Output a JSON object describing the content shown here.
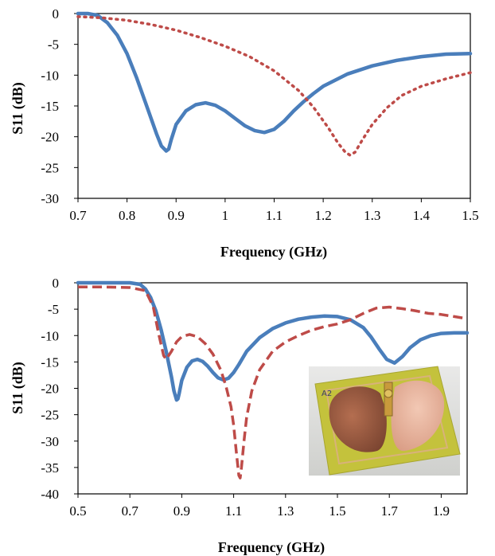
{
  "chart_data": [
    {
      "type": "line",
      "xlabel": "Frequency (GHz)",
      "ylabel": "S11 (dB)",
      "xlim": [
        0.7,
        1.5
      ],
      "ylim": [
        -30,
        0
      ],
      "xticks": [
        "0.7",
        "0.8",
        "0.9",
        "1",
        "1.1",
        "1.2",
        "1.3",
        "1.4",
        "1.5"
      ],
      "yticks": [
        "0",
        "-5",
        "-10",
        "-15",
        "-20",
        "-25",
        "-30"
      ],
      "grid": false,
      "legend": "none",
      "series": [
        {
          "style": "solid",
          "color": "#4a7ebb",
          "x": [
            0.7,
            0.72,
            0.74,
            0.76,
            0.78,
            0.8,
            0.82,
            0.84,
            0.86,
            0.87,
            0.88,
            0.885,
            0.89,
            0.9,
            0.92,
            0.94,
            0.96,
            0.98,
            1.0,
            1.02,
            1.04,
            1.06,
            1.08,
            1.1,
            1.12,
            1.14,
            1.16,
            1.18,
            1.2,
            1.25,
            1.3,
            1.35,
            1.4,
            1.45,
            1.5
          ],
          "y": [
            0,
            0,
            -0.3,
            -1.5,
            -3.5,
            -6.5,
            -10.5,
            -15.0,
            -19.5,
            -21.5,
            -22.3,
            -22.0,
            -20.5,
            -18.0,
            -15.8,
            -14.8,
            -14.5,
            -14.9,
            -15.8,
            -17.0,
            -18.2,
            -19.0,
            -19.3,
            -18.8,
            -17.5,
            -15.8,
            -14.3,
            -13.0,
            -11.8,
            -9.8,
            -8.5,
            -7.6,
            -7.0,
            -6.6,
            -6.5
          ]
        },
        {
          "style": "dotted",
          "color": "#be4b48",
          "x": [
            0.7,
            0.75,
            0.8,
            0.85,
            0.9,
            0.95,
            1.0,
            1.05,
            1.1,
            1.15,
            1.18,
            1.21,
            1.23,
            1.245,
            1.255,
            1.265,
            1.28,
            1.3,
            1.33,
            1.36,
            1.4,
            1.45,
            1.5
          ],
          "y": [
            -0.5,
            -0.7,
            -1.1,
            -1.8,
            -2.7,
            -3.9,
            -5.3,
            -7.0,
            -9.3,
            -12.5,
            -15.2,
            -18.5,
            -21.0,
            -22.5,
            -23.0,
            -22.5,
            -20.5,
            -18.0,
            -15.3,
            -13.3,
            -11.8,
            -10.6,
            -9.6
          ]
        }
      ]
    },
    {
      "type": "line",
      "xlabel": "Frequency (GHz)",
      "ylabel": "S11 (dB)",
      "xlim": [
        0.5,
        2.0
      ],
      "ylim": [
        -40,
        0
      ],
      "xticks": [
        "0.5",
        "0.7",
        "0.9",
        "1.1",
        "1.3",
        "1.5",
        "1.7",
        "1.9"
      ],
      "yticks": [
        "0",
        "-5",
        "-10",
        "-15",
        "-20",
        "-25",
        "-30",
        "-35",
        "-40"
      ],
      "grid": false,
      "legend": "none",
      "series": [
        {
          "style": "solid",
          "color": "#4a7ebb",
          "x": [
            0.5,
            0.6,
            0.7,
            0.74,
            0.76,
            0.78,
            0.8,
            0.82,
            0.84,
            0.86,
            0.87,
            0.88,
            0.885,
            0.89,
            0.9,
            0.92,
            0.94,
            0.96,
            0.98,
            1.0,
            1.02,
            1.04,
            1.06,
            1.08,
            1.1,
            1.12,
            1.15,
            1.2,
            1.25,
            1.3,
            1.35,
            1.4,
            1.45,
            1.5,
            1.55,
            1.6,
            1.63,
            1.66,
            1.69,
            1.72,
            1.75,
            1.78,
            1.82,
            1.86,
            1.9,
            1.95,
            2.0
          ],
          "y": [
            0,
            0,
            0,
            -0.3,
            -1.2,
            -2.8,
            -5.3,
            -8.8,
            -13.0,
            -17.8,
            -20.5,
            -22.2,
            -22.0,
            -21.0,
            -18.5,
            -16.0,
            -14.8,
            -14.5,
            -14.9,
            -15.8,
            -17.0,
            -18.0,
            -18.4,
            -18.1,
            -17.0,
            -15.5,
            -13.0,
            -10.4,
            -8.7,
            -7.6,
            -6.9,
            -6.5,
            -6.3,
            -6.4,
            -7.0,
            -8.5,
            -10.3,
            -12.5,
            -14.5,
            -15.2,
            -14.0,
            -12.3,
            -10.8,
            -10.0,
            -9.6,
            -9.5,
            -9.5
          ]
        },
        {
          "style": "dashed",
          "color": "#be4b48",
          "x": [
            0.5,
            0.6,
            0.7,
            0.76,
            0.79,
            0.81,
            0.83,
            0.84,
            0.86,
            0.88,
            0.9,
            0.93,
            0.96,
            0.99,
            1.02,
            1.05,
            1.07,
            1.09,
            1.1,
            1.11,
            1.12,
            1.125,
            1.13,
            1.14,
            1.15,
            1.17,
            1.2,
            1.25,
            1.3,
            1.35,
            1.4,
            1.45,
            1.5,
            1.55,
            1.6,
            1.65,
            1.7,
            1.75,
            1.8,
            1.85,
            1.9,
            1.95,
            2.0
          ],
          "y": [
            -0.8,
            -0.8,
            -0.9,
            -1.5,
            -4.5,
            -9.5,
            -13.8,
            -14.5,
            -13.0,
            -11.2,
            -10.2,
            -9.8,
            -10.2,
            -11.5,
            -13.5,
            -16.5,
            -19.5,
            -23.5,
            -27.0,
            -32.0,
            -36.5,
            -37.0,
            -35.0,
            -30.0,
            -25.5,
            -20.5,
            -16.5,
            -13.0,
            -11.2,
            -10.0,
            -9.0,
            -8.3,
            -7.8,
            -7.0,
            -5.8,
            -4.8,
            -4.6,
            -4.9,
            -5.3,
            -5.8,
            -6.0,
            -6.4,
            -6.8
          ]
        }
      ]
    }
  ],
  "photo": {
    "label": "A2",
    "board_color": "#c7c33a",
    "patch_left_color": "#9c5a3c",
    "patch_right_color": "#e6b29a",
    "connector": "sma-connector"
  }
}
